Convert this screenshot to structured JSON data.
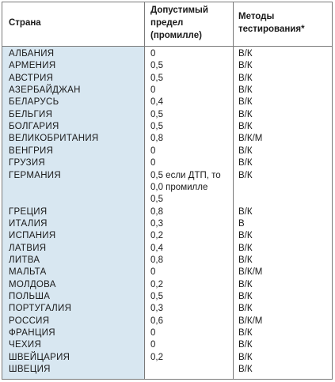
{
  "headers": {
    "country": "Страна",
    "limit_line1": "Допустимый",
    "limit_line2": "предел",
    "limit_line3": "(промилле)",
    "methods_line1": "Методы",
    "methods_line2": "тестирования*"
  },
  "rows": [
    {
      "country": "АЛБАНИЯ",
      "limit": "0",
      "method": "В/К"
    },
    {
      "country": "АРМЕНИЯ",
      "limit": "0,5",
      "method": "В/К"
    },
    {
      "country": "АВСТРИЯ",
      "limit": "0,5",
      "method": "В/К"
    },
    {
      "country": "АЗЕРБАЙДЖАН",
      "limit": "0",
      "method": "В/К"
    },
    {
      "country": "БЕЛАРУСЬ",
      "limit": "0,4",
      "method": "В/К"
    },
    {
      "country": "БЕЛЬГИЯ",
      "limit": "0,5",
      "method": "В/К"
    },
    {
      "country": "БОЛГАРИЯ",
      "limit": "0,5",
      "method": "В/К"
    },
    {
      "country": "ВЕЛИКОБРИТАНИЯ",
      "limit": "0,8",
      "method": "В/К/М"
    },
    {
      "country": "ВЕНГРИЯ",
      "limit": "0",
      "method": "В/К"
    },
    {
      "country": "ГРУЗИЯ",
      "limit": "0",
      "method": "В/К"
    },
    {
      "country": "ГЕРМАНИЯ",
      "limit": "0,5 если ДТП, то",
      "method": "В/К"
    },
    {
      "country": "",
      "limit": "0,0 промилле",
      "method": ""
    },
    {
      "country": "",
      "limit": "0,5",
      "method": ""
    },
    {
      "country": "ГРЕЦИЯ",
      "limit": "0,8",
      "method": "В/К"
    },
    {
      "country": "ИТАЛИЯ",
      "limit": "0,3",
      "method": "В"
    },
    {
      "country": "ИСПАНИЯ",
      "limit": "0,2",
      "method": "В/К"
    },
    {
      "country": "ЛАТВИЯ",
      "limit": "0,4",
      "method": "В/К"
    },
    {
      "country": "ЛИТВА",
      "limit": "0,8",
      "method": "В/К"
    },
    {
      "country": "МАЛЬТА",
      "limit": "0",
      "method": "В/К/М"
    },
    {
      "country": "МОЛДОВА",
      "limit": "0,2",
      "method": "В/К"
    },
    {
      "country": "ПОЛЬША",
      "limit": "0,5",
      "method": "В/К"
    },
    {
      "country": "ПОРТУГАЛИЯ",
      "limit": "0,3",
      "method": "В/К"
    },
    {
      "country": "РОССИЯ",
      "limit": "0,6",
      "method": "В/К/М"
    },
    {
      "country": "ФРАНЦИЯ",
      "limit": "0",
      "method": "В/К"
    },
    {
      "country": "ЧЕХИЯ",
      "limit": "0",
      "method": "В/К"
    },
    {
      "country": "ШВЕЙЦАРИЯ",
      "limit": "0,2",
      "method": "В/К"
    },
    {
      "country": "ШВЕЦИЯ",
      "limit": "",
      "method": "В/К"
    }
  ]
}
